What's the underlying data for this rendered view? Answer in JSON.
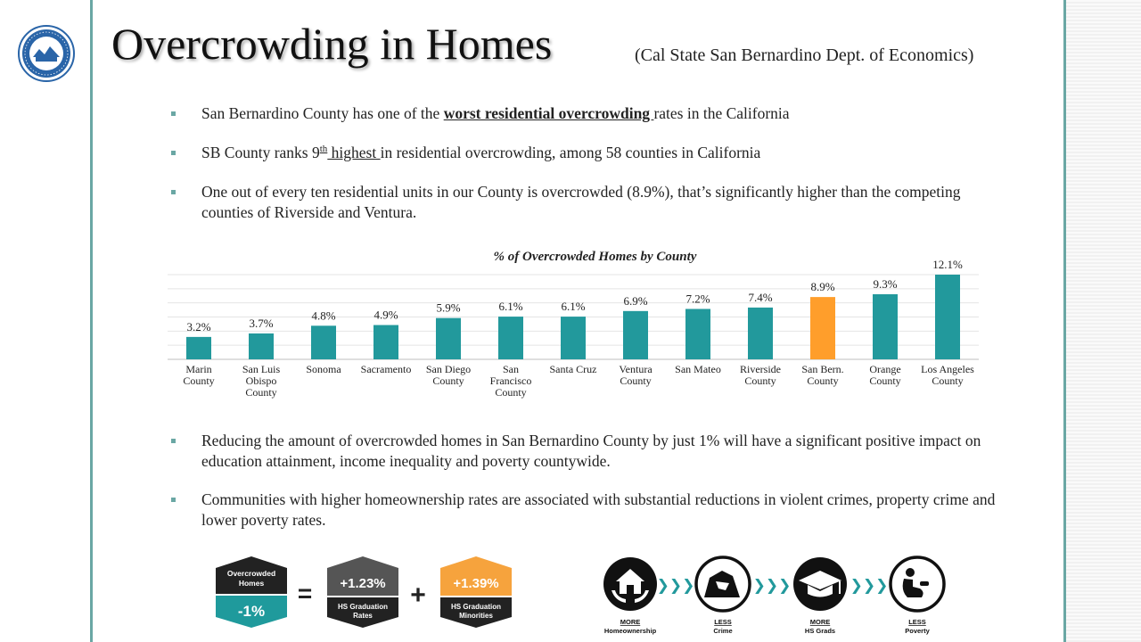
{
  "header": {
    "title": "Overcrowding in Homes",
    "subtitle": "(Cal State San Bernardino Dept. of Economics)"
  },
  "bullets": [
    {
      "pre": "San Bernardino County has one of the ",
      "emph": "worst residential overcrowding ",
      "post": "rates in the California"
    },
    {
      "pre": "SB County ranks 9",
      "sup": "th",
      "emph": " highest ",
      "post": "in residential overcrowding, among 58 counties in California"
    },
    {
      "text": "One out of every ten residential units in our County is overcrowded (8.9%), that’s significantly higher than the competing counties of Riverside and Ventura."
    }
  ],
  "bullets_bottom": [
    {
      "text": "Reducing the amount of overcrowded homes in San Bernardino County by just 1% will have a significant positive impact on education attainment, income inequality and poverty countywide."
    },
    {
      "text": "Communities with higher homeownership rates are associated with substantial reductions in violent crimes, property crime and lower poverty rates."
    }
  ],
  "chart_data": {
    "type": "bar",
    "title": "% of Overcrowded Homes by County",
    "categories": [
      [
        "Marin",
        "County"
      ],
      [
        "San Luis",
        "Obispo",
        "County"
      ],
      [
        "Sonoma"
      ],
      [
        "Sacramento"
      ],
      [
        "San Diego",
        "County"
      ],
      [
        "San",
        "Francisco",
        "County"
      ],
      [
        "Santa Cruz"
      ],
      [
        "Ventura",
        "County"
      ],
      [
        "San Mateo"
      ],
      [
        "Riverside",
        "County"
      ],
      [
        "San Bern.",
        "County"
      ],
      [
        "Orange",
        "County"
      ],
      [
        "Los Angeles",
        "County"
      ]
    ],
    "values": [
      3.2,
      3.7,
      4.8,
      4.9,
      5.9,
      6.1,
      6.1,
      6.9,
      7.2,
      7.4,
      8.9,
      9.3,
      12.1
    ],
    "labels": [
      "3.2%",
      "3.7%",
      "4.8%",
      "4.9%",
      "5.9%",
      "6.1%",
      "6.1%",
      "6.9%",
      "7.2%",
      "7.4%",
      "8.9%",
      "9.3%",
      "12.1%"
    ],
    "highlight_index": 10,
    "ylim": [
      0,
      12.1
    ],
    "grid": true,
    "xlabel": "",
    "ylabel": "",
    "colors": {
      "bar": "#22999c",
      "highlight": "#ff9e2b"
    }
  },
  "equation": {
    "box1_top": "Overcrowded Homes",
    "box1_bottom": "-1%",
    "equals": "=",
    "box2_value": "+1.23%",
    "box2_label": "HS Graduation Rates",
    "plus": "+",
    "box3_value": "+1.39%",
    "box3_label": "HS Graduation Minorities",
    "colors": {
      "dark": "#222222",
      "teal": "#1f9a9c",
      "gray": "#555555",
      "orange": "#f6a33d"
    }
  },
  "outcomes": [
    {
      "word": "MORE",
      "label": "Homeownership",
      "icon": "homeownership-icon"
    },
    {
      "word": "LESS",
      "label": "Crime",
      "icon": "crime-icon"
    },
    {
      "word": "MORE",
      "label": "HS Grads",
      "icon": "graduation-cap-icon"
    },
    {
      "word": "LESS",
      "label": "Poverty",
      "icon": "poverty-icon"
    }
  ],
  "arrow_glyph": "❯❯❯",
  "colors": {
    "accent": "#6aa7a4",
    "arrow": "#22999c"
  }
}
